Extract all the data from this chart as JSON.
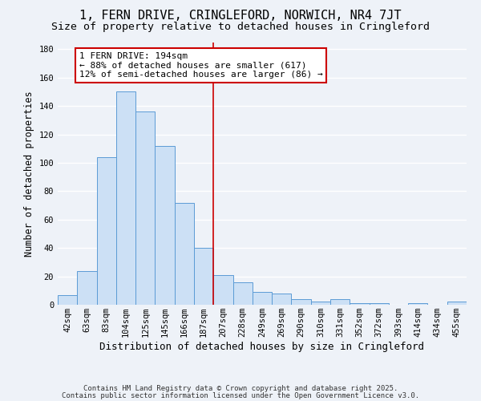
{
  "title": "1, FERN DRIVE, CRINGLEFORD, NORWICH, NR4 7JT",
  "subtitle": "Size of property relative to detached houses in Cringleford",
  "xlabel": "Distribution of detached houses by size in Cringleford",
  "ylabel": "Number of detached properties",
  "bar_labels": [
    "42sqm",
    "63sqm",
    "83sqm",
    "104sqm",
    "125sqm",
    "145sqm",
    "166sqm",
    "187sqm",
    "207sqm",
    "228sqm",
    "249sqm",
    "269sqm",
    "290sqm",
    "310sqm",
    "331sqm",
    "352sqm",
    "372sqm",
    "393sqm",
    "414sqm",
    "434sqm",
    "455sqm"
  ],
  "bar_heights": [
    7,
    24,
    104,
    150,
    136,
    112,
    72,
    40,
    21,
    16,
    9,
    8,
    4,
    2,
    4,
    1,
    1,
    0,
    1,
    0,
    2
  ],
  "bar_color": "#cce0f5",
  "bar_edge_color": "#5b9bd5",
  "vline_x_index": 7,
  "vline_color": "#cc0000",
  "annotation_title": "1 FERN DRIVE: 194sqm",
  "annotation_line1": "← 88% of detached houses are smaller (617)",
  "annotation_line2": "12% of semi-detached houses are larger (86) →",
  "annotation_box_color": "#ffffff",
  "annotation_box_edge": "#cc0000",
  "ylim": [
    0,
    185
  ],
  "yticks": [
    0,
    20,
    40,
    60,
    80,
    100,
    120,
    140,
    160,
    180
  ],
  "footer_line1": "Contains HM Land Registry data © Crown copyright and database right 2025.",
  "footer_line2": "Contains public sector information licensed under the Open Government Licence v3.0.",
  "bg_color": "#eef2f8",
  "grid_color": "#ffffff",
  "title_fontsize": 11,
  "subtitle_fontsize": 9.5,
  "xlabel_fontsize": 9,
  "ylabel_fontsize": 8.5,
  "tick_fontsize": 7.5,
  "footer_fontsize": 6.5,
  "annotation_fontsize": 8
}
